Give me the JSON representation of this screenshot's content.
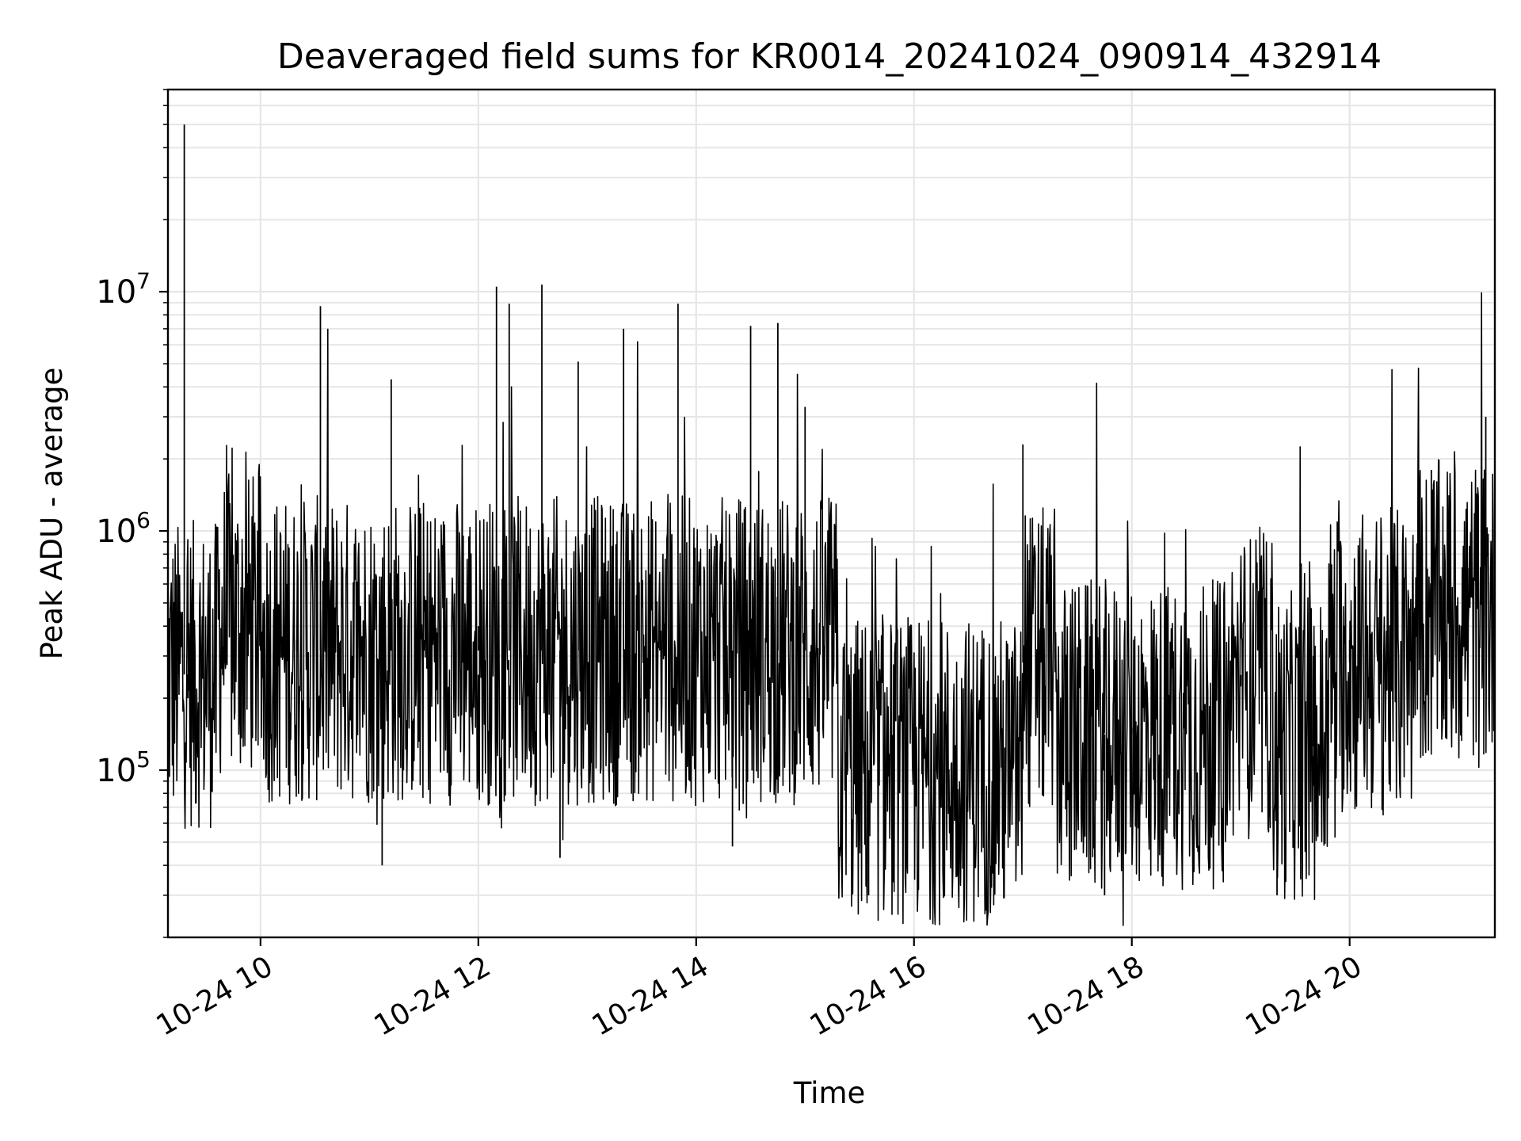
{
  "chart_data": {
    "type": "line",
    "title": "Deaveraged field sums for KR0014_20241024_090914_432914",
    "xlabel": "Time",
    "ylabel": "Peak ADU - average",
    "y_scale": "log",
    "ylim": [
      20000,
      70000000
    ],
    "xlim": [
      "2024-10-24 09:09",
      "2024-10-24 21:20"
    ],
    "grid": true,
    "line_color": "#000000",
    "grid_color": "#e6e6e6",
    "x_ticks": [
      {
        "value": "2024-10-24 10:00",
        "label": "10-24 10"
      },
      {
        "value": "2024-10-24 12:00",
        "label": "10-24 12"
      },
      {
        "value": "2024-10-24 14:00",
        "label": "10-24 14"
      },
      {
        "value": "2024-10-24 16:00",
        "label": "10-24 16"
      },
      {
        "value": "2024-10-24 18:00",
        "label": "10-24 18"
      },
      {
        "value": "2024-10-24 20:00",
        "label": "10-24 20"
      }
    ],
    "y_ticks": [
      {
        "value": 100000,
        "base": "10",
        "exp": "5"
      },
      {
        "value": 1000000,
        "base": "10",
        "exp": "6"
      },
      {
        "value": 10000000,
        "base": "10",
        "exp": "7"
      }
    ],
    "series": [
      {
        "points": [
          [
            "2024-10-24 09:09",
            350000
          ],
          [
            "2024-10-24 09:15",
            600000
          ],
          [
            "2024-10-24 09:18",
            50000000
          ],
          [
            "2024-10-24 09:20",
            200000
          ],
          [
            "2024-10-24 09:30",
            180000
          ],
          [
            "2024-10-24 09:40",
            500000
          ],
          [
            "2024-10-24 09:50",
            700000
          ],
          [
            "2024-10-24 10:00",
            500000
          ],
          [
            "2024-10-24 10:20",
            350000
          ],
          [
            "2024-10-24 10:33",
            8700000
          ],
          [
            "2024-10-24 10:40",
            300000
          ],
          [
            "2024-10-24 11:00",
            400000
          ],
          [
            "2024-10-24 11:07",
            40000
          ],
          [
            "2024-10-24 11:12",
            4300000
          ],
          [
            "2024-10-24 11:30",
            350000
          ],
          [
            "2024-10-24 12:00",
            400000
          ],
          [
            "2024-10-24 12:10",
            10500000
          ],
          [
            "2024-10-24 12:17",
            8900000
          ],
          [
            "2024-10-24 12:35",
            10700000
          ],
          [
            "2024-10-24 12:45",
            43000
          ],
          [
            "2024-10-24 12:55",
            5100000
          ],
          [
            "2024-10-24 13:20",
            7000000
          ],
          [
            "2024-10-24 13:40",
            400000
          ],
          [
            "2024-10-24 13:50",
            8900000
          ],
          [
            "2024-10-24 14:10",
            300000
          ],
          [
            "2024-10-24 14:20",
            48000
          ],
          [
            "2024-10-24 14:30",
            7200000
          ],
          [
            "2024-10-24 14:45",
            7400000
          ],
          [
            "2024-10-24 15:00",
            3300000
          ],
          [
            "2024-10-24 15:10",
            400000
          ],
          [
            "2024-10-24 15:30",
            150000
          ],
          [
            "2024-10-24 15:35",
            30000
          ],
          [
            "2024-10-24 16:00",
            120000
          ],
          [
            "2024-10-24 16:30",
            100000
          ],
          [
            "2024-10-24 17:00",
            2300000
          ],
          [
            "2024-10-24 17:10",
            400000
          ],
          [
            "2024-10-24 17:30",
            120000
          ],
          [
            "2024-10-24 17:45",
            30000
          ],
          [
            "2024-10-24 18:00",
            150000
          ],
          [
            "2024-10-24 18:30",
            250000
          ],
          [
            "2024-10-24 19:00",
            250000
          ],
          [
            "2024-10-24 19:20",
            30000
          ],
          [
            "2024-10-24 19:40",
            300000
          ],
          [
            "2024-10-24 20:00",
            350000
          ],
          [
            "2024-10-24 20:30",
            500000
          ],
          [
            "2024-10-24 20:45",
            1800000
          ],
          [
            "2024-10-24 21:05",
            700000
          ],
          [
            "2024-10-24 21:15",
            3000000
          ],
          [
            "2024-10-24 21:20",
            600000
          ]
        ]
      }
    ]
  }
}
